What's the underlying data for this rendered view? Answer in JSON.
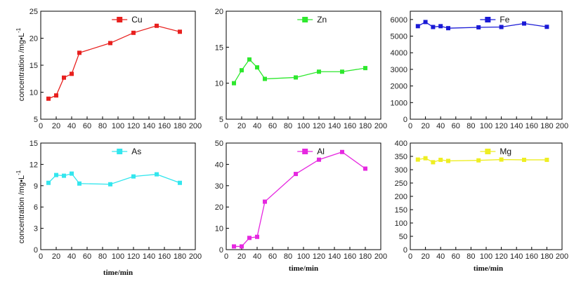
{
  "figure": {
    "ylabel": "concentration /mg•L",
    "ylabel_sup": "-1",
    "xlabel": "time/min"
  },
  "chart_data": [
    {
      "type": "line",
      "series": [
        {
          "name": "Cu",
          "color": "#e8201e",
          "marker": "square",
          "x": [
            10,
            20,
            30,
            40,
            50,
            90,
            120,
            150,
            180
          ],
          "y": [
            8.8,
            9.4,
            12.7,
            13.4,
            17.3,
            19.1,
            21.0,
            22.3,
            21.2
          ]
        }
      ],
      "xlim": [
        0,
        200
      ],
      "ylim": [
        5,
        25
      ],
      "xticks": [
        0,
        20,
        40,
        60,
        80,
        100,
        120,
        140,
        160,
        180,
        200
      ],
      "yticks": [
        5,
        10,
        15,
        20,
        25
      ],
      "legend": "top-right"
    },
    {
      "type": "line",
      "series": [
        {
          "name": "Zn",
          "color": "#2ee82e",
          "marker": "square",
          "x": [
            10,
            20,
            30,
            40,
            50,
            90,
            120,
            150,
            180
          ],
          "y": [
            10.0,
            11.8,
            13.3,
            12.2,
            10.6,
            10.8,
            11.6,
            11.6,
            12.1
          ]
        }
      ],
      "xlim": [
        0,
        200
      ],
      "ylim": [
        5,
        20
      ],
      "xticks": [
        0,
        20,
        40,
        60,
        80,
        100,
        120,
        140,
        160,
        180,
        200
      ],
      "yticks": [
        5,
        10,
        15,
        20
      ],
      "legend": "top-right"
    },
    {
      "type": "line",
      "series": [
        {
          "name": "Fe",
          "color": "#1a1ad6",
          "marker": "square",
          "x": [
            10,
            20,
            30,
            40,
            50,
            90,
            120,
            150,
            180
          ],
          "y": [
            5600,
            5850,
            5550,
            5600,
            5480,
            5530,
            5550,
            5760,
            5560
          ]
        }
      ],
      "xlim": [
        0,
        200
      ],
      "ylim": [
        0,
        6500
      ],
      "xticks": [
        0,
        20,
        40,
        60,
        80,
        100,
        120,
        140,
        160,
        180,
        200
      ],
      "yticks": [
        0,
        1000,
        2000,
        3000,
        4000,
        5000,
        6000
      ],
      "legend": "top-right"
    },
    {
      "type": "line",
      "series": [
        {
          "name": "As",
          "color": "#33e6ee",
          "marker": "square",
          "x": [
            10,
            20,
            30,
            40,
            50,
            90,
            120,
            150,
            180
          ],
          "y": [
            9.4,
            10.5,
            10.4,
            10.7,
            9.3,
            9.2,
            10.3,
            10.6,
            9.4
          ]
        }
      ],
      "xlim": [
        0,
        200
      ],
      "ylim": [
        0,
        15
      ],
      "xticks": [
        0,
        20,
        40,
        60,
        80,
        100,
        120,
        140,
        160,
        180,
        200
      ],
      "yticks": [
        0,
        3,
        6,
        9,
        12,
        15
      ],
      "legend": "top-right"
    },
    {
      "type": "line",
      "series": [
        {
          "name": "Al",
          "color": "#e628e0",
          "marker": "square",
          "x": [
            10,
            20,
            30,
            40,
            50,
            90,
            120,
            150,
            180
          ],
          "y": [
            1.5,
            1.5,
            5.5,
            6.0,
            22.5,
            35.5,
            42.2,
            45.8,
            38.0
          ]
        }
      ],
      "xlim": [
        0,
        200
      ],
      "ylim": [
        0,
        50
      ],
      "xticks": [
        0,
        20,
        40,
        60,
        80,
        100,
        120,
        140,
        160,
        180,
        200
      ],
      "yticks": [
        0,
        10,
        20,
        30,
        40,
        50
      ],
      "legend": "top-right"
    },
    {
      "type": "line",
      "series": [
        {
          "name": "Mg",
          "color": "#eeee22",
          "marker": "square",
          "x": [
            10,
            20,
            30,
            40,
            50,
            90,
            120,
            150,
            180
          ],
          "y": [
            338,
            343,
            328,
            337,
            333,
            335,
            338,
            337,
            337
          ]
        }
      ],
      "xlim": [
        0,
        200
      ],
      "ylim": [
        0,
        400
      ],
      "xticks": [
        0,
        20,
        40,
        60,
        80,
        100,
        120,
        140,
        160,
        180,
        200
      ],
      "yticks": [
        0,
        50,
        100,
        150,
        200,
        250,
        300,
        350,
        400
      ],
      "legend": "top-right"
    }
  ]
}
